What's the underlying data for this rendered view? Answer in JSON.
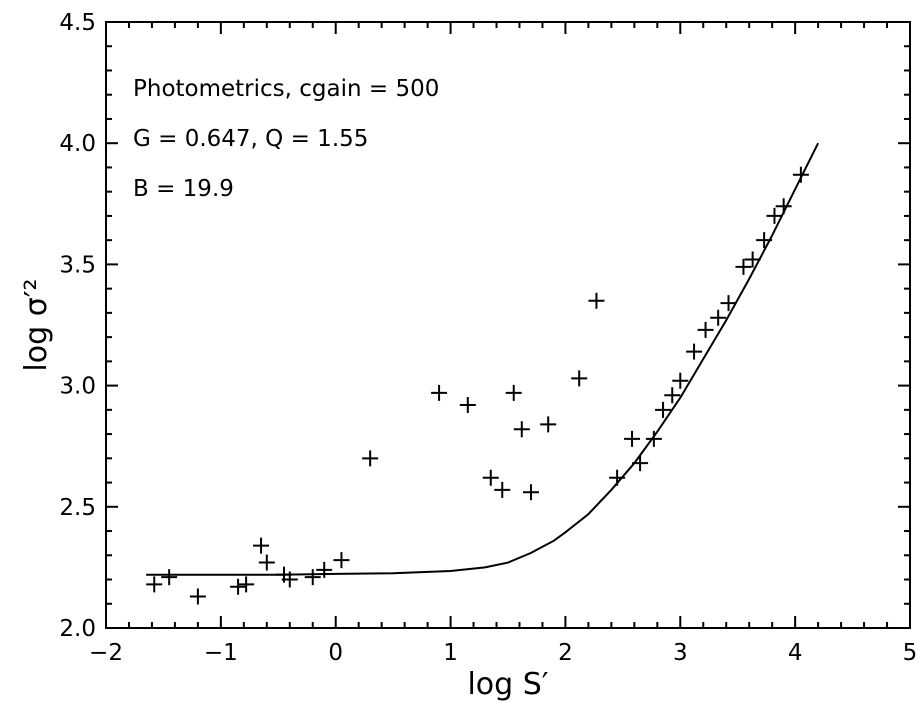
{
  "chart_data": {
    "type": "scatter",
    "xlabel": "log S′",
    "ylabel": "log σ′²",
    "xlim": [
      -2,
      5
    ],
    "ylim": [
      2.0,
      4.5
    ],
    "x_ticks": [
      -2,
      -1,
      0,
      1,
      2,
      3,
      4,
      5
    ],
    "x_tick_labels": [
      "−2",
      "−1",
      "0",
      "1",
      "2",
      "3",
      "4",
      "5"
    ],
    "y_ticks": [
      2.0,
      2.5,
      3.0,
      3.5,
      4.0,
      4.5
    ],
    "y_tick_labels": [
      "2.0",
      "2.5",
      "3.0",
      "3.5",
      "4.0",
      "4.5"
    ],
    "grid": false,
    "legend": "none",
    "annotations": [
      "Photometrics, cgain = 500",
      "G = 0.647, Q = 1.55",
      "B = 19.9"
    ],
    "series": [
      {
        "marker": "plus",
        "x": [
          -1.58,
          -1.45,
          -1.2,
          -0.85,
          -0.78,
          -0.65,
          -0.6,
          -0.45,
          -0.4,
          -0.2,
          -0.1,
          0.05,
          0.3,
          0.9,
          1.15,
          1.35,
          1.45,
          1.55,
          1.62,
          1.7,
          1.85,
          2.12,
          2.27,
          2.45,
          2.58,
          2.65,
          2.77,
          2.85,
          2.93,
          3.0,
          3.12,
          3.22,
          3.33,
          3.42,
          3.55,
          3.63,
          3.73,
          3.82,
          3.9,
          4.05
        ],
        "y": [
          2.18,
          2.21,
          2.13,
          2.17,
          2.18,
          2.34,
          2.27,
          2.22,
          2.2,
          2.21,
          2.24,
          2.28,
          2.7,
          2.97,
          2.92,
          2.62,
          2.57,
          2.97,
          2.82,
          2.56,
          2.84,
          3.03,
          3.35,
          2.62,
          2.78,
          2.68,
          2.78,
          2.9,
          2.96,
          3.02,
          3.14,
          3.23,
          3.28,
          3.34,
          3.49,
          3.52,
          3.6,
          3.7,
          3.74,
          3.87
        ]
      },
      {
        "marker": "none",
        "line": "solid",
        "x": [
          -1.65,
          -1.0,
          -0.5,
          0.0,
          0.5,
          1.0,
          1.3,
          1.5,
          1.7,
          1.9,
          2.0,
          2.2,
          2.4,
          2.6,
          2.8,
          3.0,
          3.2,
          3.4,
          3.6,
          3.8,
          4.0,
          4.2
        ],
        "y": [
          2.22,
          2.22,
          2.22,
          2.223,
          2.226,
          2.235,
          2.25,
          2.27,
          2.31,
          2.36,
          2.395,
          2.47,
          2.57,
          2.68,
          2.81,
          2.95,
          3.11,
          3.27,
          3.44,
          3.62,
          3.81,
          4.0
        ]
      }
    ]
  }
}
